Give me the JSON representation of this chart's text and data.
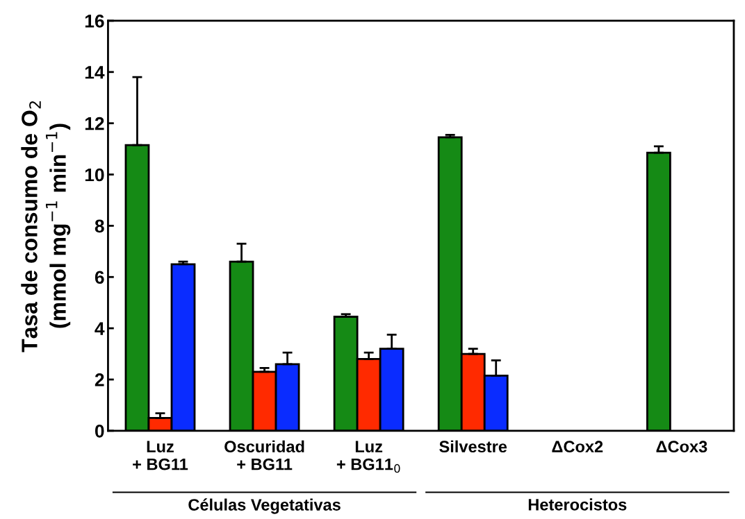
{
  "chart_data": {
    "type": "bar",
    "ylabel": "Tasa de consumo de O$_{2}$\n(mmol mg$^{−1}$ min$^{−1}$)",
    "categories": [
      "Luz\n+ BG11",
      "Oscuridad\n+ BG11",
      "Luz\n+ BG11$_{0}$",
      "Silvestre",
      "ΔCox2",
      "ΔCox3"
    ],
    "series": [
      {
        "color": "#158a15",
        "values": [
          11.15,
          6.6,
          4.45,
          11.45,
          null,
          10.85
        ],
        "errors": [
          [
            11.15,
            13.8
          ],
          [
            6.6,
            7.3
          ],
          [
            4.45,
            4.55
          ],
          [
            11.45,
            11.55
          ],
          null,
          [
            10.85,
            11.1
          ]
        ]
      },
      {
        "color": "#ff2a00",
        "values": [
          0.5,
          2.3,
          2.8,
          3.0,
          null,
          null
        ],
        "errors": [
          [
            0.5,
            0.68
          ],
          [
            2.3,
            2.45
          ],
          [
            2.8,
            3.05
          ],
          [
            3.0,
            3.2
          ],
          null,
          null
        ]
      },
      {
        "color": "#0a2cff",
        "values": [
          6.5,
          2.6,
          3.2,
          2.15,
          null,
          null
        ],
        "errors": [
          [
            6.5,
            6.6
          ],
          [
            2.6,
            3.05
          ],
          [
            3.2,
            3.75
          ],
          [
            2.15,
            2.75
          ],
          null,
          null
        ]
      }
    ],
    "ylim": [
      0,
      16
    ],
    "yticks": [
      0,
      2,
      4,
      6,
      8,
      10,
      12,
      14,
      16
    ],
    "annotations": [
      "Células Vegetativas",
      "Heterocistos"
    ],
    "grid": false
  }
}
